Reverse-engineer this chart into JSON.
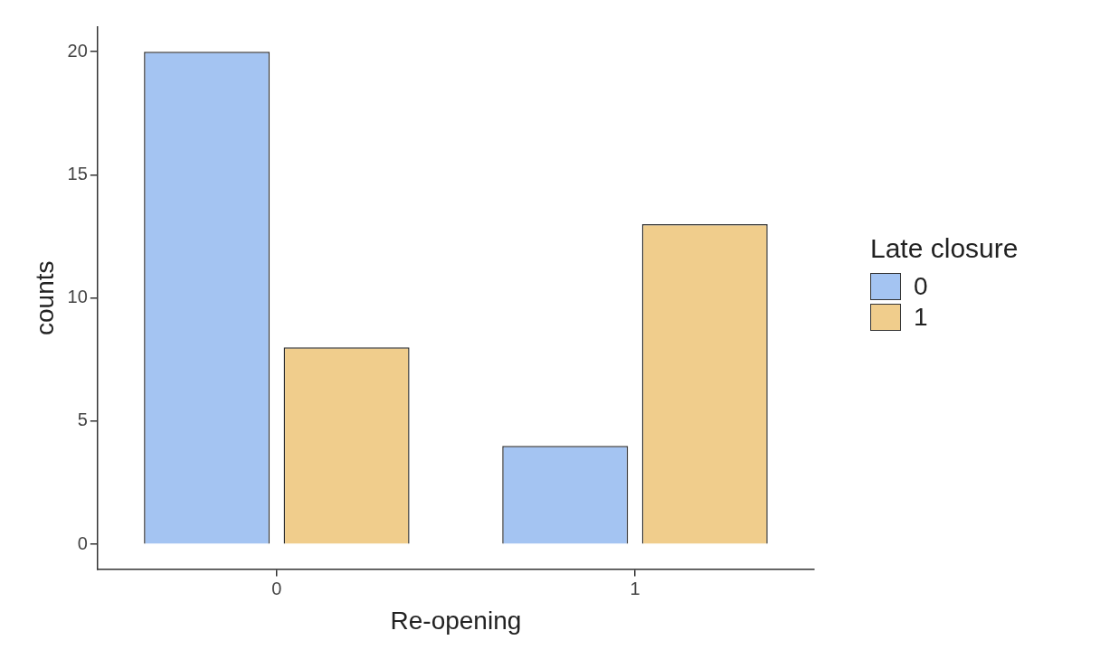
{
  "chart_data": {
    "type": "bar",
    "xlabel": "Re-opening",
    "ylabel": "counts",
    "legend_title": "Late closure",
    "categories": [
      "0",
      "1"
    ],
    "series": [
      {
        "name": "0",
        "color": "#a4c4f2",
        "values": [
          20,
          4
        ]
      },
      {
        "name": "1",
        "color": "#f0cd8c",
        "values": [
          8,
          13
        ]
      }
    ],
    "ylim": [
      -1,
      21
    ],
    "yticks": [
      0,
      5,
      10,
      15,
      20
    ],
    "grid": false,
    "legend": "right"
  }
}
